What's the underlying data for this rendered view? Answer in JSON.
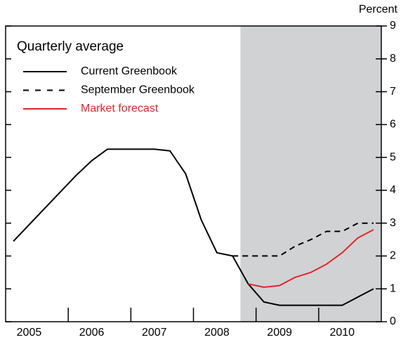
{
  "chart_data": {
    "type": "line",
    "title": "Quarterly average",
    "y_axis_label": "Percent",
    "categories": [
      null,
      "2005",
      null,
      null,
      null,
      "2006",
      null,
      null,
      null,
      "2007",
      null,
      null,
      null,
      "2008",
      null,
      null,
      null,
      "2009",
      null,
      null,
      null,
      "2010",
      null,
      null
    ],
    "series": [
      {
        "name": "Current Greenbook",
        "color": "#000000",
        "dashed": false,
        "values": [
          2.45,
          2.95,
          3.45,
          3.95,
          4.45,
          4.9,
          5.25,
          5.25,
          5.25,
          5.25,
          5.2,
          4.5,
          3.1,
          2.1,
          2.0,
          1.15,
          0.6,
          0.5,
          0.5,
          0.5,
          0.5,
          0.5,
          0.75,
          1.0
        ]
      },
      {
        "name": "September Greenbook",
        "color": "#000000",
        "dashed": true,
        "values": [
          null,
          null,
          null,
          null,
          null,
          null,
          null,
          null,
          null,
          null,
          null,
          null,
          null,
          null,
          2.0,
          2.0,
          2.0,
          2.0,
          2.3,
          2.5,
          2.75,
          2.75,
          3.0,
          3.0
        ]
      },
      {
        "name": "Market forecast",
        "color": "#e3242b",
        "dashed": false,
        "values": [
          null,
          null,
          null,
          null,
          null,
          null,
          null,
          null,
          null,
          null,
          null,
          null,
          null,
          null,
          null,
          1.15,
          1.05,
          1.1,
          1.35,
          1.5,
          1.75,
          2.1,
          2.55,
          2.8
        ]
      }
    ],
    "shaded_from_index": 15,
    "shade_color": "#d1d2d4",
    "ylim": [
      0,
      9
    ],
    "yticks": [
      0,
      1,
      2,
      3,
      4,
      5,
      6,
      7,
      8,
      9
    ],
    "y_axis_side": "right"
  }
}
